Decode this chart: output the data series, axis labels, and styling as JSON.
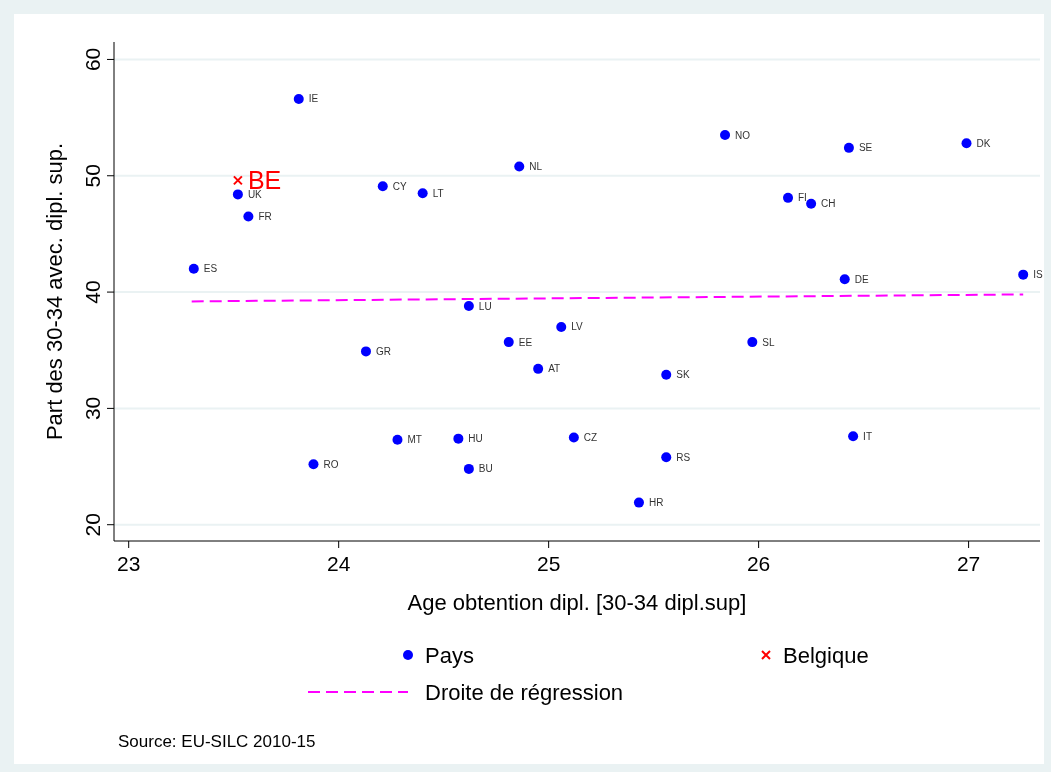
{
  "chart_data": {
    "type": "scatter",
    "xlabel": "Age obtention dipl. [30-34 dipl.sup]",
    "ylabel": "Part des 30-34 avec. dipl. sup.",
    "xlim": [
      22.93,
      27.34
    ],
    "xticks": [
      23,
      24,
      25,
      26,
      27
    ],
    "ylim": [
      18.6,
      61.5
    ],
    "yticks": [
      20,
      30,
      40,
      50,
      60
    ],
    "grid": "y",
    "legend": "bottom",
    "series": [
      {
        "name": "Pays",
        "marker": "circle",
        "color": "#0000ff",
        "x": [
          23.81,
          23.52,
          23.57,
          23.31,
          24.21,
          24.4,
          24.86,
          25.84,
          26.43,
          26.99,
          26.14,
          26.25,
          26.41,
          27.26,
          24.62,
          25.06,
          24.81,
          25.97,
          24.13,
          24.95,
          25.56,
          24.28,
          24.57,
          25.12,
          26.45,
          25.56,
          23.88,
          24.62,
          25.43
        ],
        "values": [
          56.6,
          48.4,
          46.5,
          42.0,
          49.1,
          48.5,
          50.8,
          53.5,
          52.4,
          52.8,
          48.1,
          47.6,
          41.1,
          41.5,
          38.8,
          37.0,
          35.7,
          35.7,
          34.9,
          33.4,
          32.9,
          27.3,
          27.4,
          27.5,
          27.6,
          25.8,
          25.2,
          24.8,
          21.9
        ]
      },
      {
        "name": "Belgique",
        "marker": "cross",
        "color": "#ff0000",
        "x": [
          23.52
        ],
        "values": [
          49.6
        ]
      },
      {
        "name": "Droite de régression",
        "type": "line",
        "line_style": "dashed",
        "marker": "none",
        "color": "#ff00ff",
        "x": [
          23.3,
          27.26
        ],
        "values": [
          39.2,
          39.8
        ]
      }
    ],
    "annotations": [
      {
        "text": "IE",
        "x": 23.81,
        "y": 56.6
      },
      {
        "text": "UK",
        "x": 23.52,
        "y": 48.4
      },
      {
        "text": "FR",
        "x": 23.57,
        "y": 46.5
      },
      {
        "text": "ES",
        "x": 23.31,
        "y": 42.0
      },
      {
        "text": "CY",
        "x": 24.21,
        "y": 49.1
      },
      {
        "text": "LT",
        "x": 24.4,
        "y": 48.5
      },
      {
        "text": "NL",
        "x": 24.86,
        "y": 50.8
      },
      {
        "text": "NO",
        "x": 25.84,
        "y": 53.5
      },
      {
        "text": "SE",
        "x": 26.43,
        "y": 52.4
      },
      {
        "text": "DK",
        "x": 26.99,
        "y": 52.8
      },
      {
        "text": "FI",
        "x": 26.14,
        "y": 48.1
      },
      {
        "text": "CH",
        "x": 26.25,
        "y": 47.6
      },
      {
        "text": "DE",
        "x": 26.41,
        "y": 41.1
      },
      {
        "text": "IS",
        "x": 27.26,
        "y": 41.5
      },
      {
        "text": "LU",
        "x": 24.62,
        "y": 38.8
      },
      {
        "text": "LV",
        "x": 25.06,
        "y": 37.0
      },
      {
        "text": "EE",
        "x": 24.81,
        "y": 35.7
      },
      {
        "text": "SL",
        "x": 25.97,
        "y": 35.7
      },
      {
        "text": "GR",
        "x": 24.13,
        "y": 34.9
      },
      {
        "text": "AT",
        "x": 24.95,
        "y": 33.4
      },
      {
        "text": "SK",
        "x": 25.56,
        "y": 32.9
      },
      {
        "text": "MT",
        "x": 24.28,
        "y": 27.3
      },
      {
        "text": "HU",
        "x": 24.57,
        "y": 27.4
      },
      {
        "text": "CZ",
        "x": 25.12,
        "y": 27.5
      },
      {
        "text": "IT",
        "x": 26.45,
        "y": 27.6
      },
      {
        "text": "RS",
        "x": 25.56,
        "y": 25.8
      },
      {
        "text": "RO",
        "x": 23.88,
        "y": 25.2
      },
      {
        "text": "BU",
        "x": 24.62,
        "y": 24.8
      },
      {
        "text": "HR",
        "x": 25.43,
        "y": 21.9
      },
      {
        "text": "BE",
        "x": 23.52,
        "y": 49.6
      },
      "Source: EU-SILC 2010-15"
    ]
  }
}
